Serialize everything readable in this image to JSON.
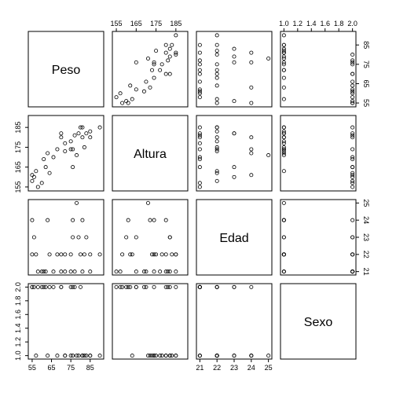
{
  "chart_data": {
    "type": "scatter",
    "kind": "pairs-matrix",
    "variables": [
      "Peso",
      "Altura",
      "Edad",
      "Sexo"
    ],
    "axes": {
      "Peso": {
        "range": [
          53,
          92
        ],
        "ticks": [
          55,
          65,
          75,
          85
        ]
      },
      "Altura": {
        "range": [
          153,
          191
        ],
        "ticks": [
          155,
          165,
          175,
          185
        ]
      },
      "Edad": {
        "range": [
          20.8,
          25.2
        ],
        "ticks": [
          21,
          22,
          23,
          24,
          25
        ]
      },
      "Sexo": {
        "range": [
          0.95,
          2.05
        ],
        "ticks": [
          1.0,
          1.2,
          1.4,
          1.6,
          1.8,
          2.0
        ]
      }
    },
    "tick_label_side": {
      "Peso": "bottom",
      "Altura": "top",
      "Edad": "bottom",
      "Sexo": "top"
    },
    "observations": {
      "Peso": [
        55,
        55,
        56,
        57,
        58,
        60,
        61,
        62,
        63,
        64,
        66,
        68,
        70,
        70,
        72,
        72,
        75,
        75,
        76,
        76,
        77,
        78,
        79,
        80,
        81,
        81,
        82,
        83,
        85,
        85,
        90
      ],
      "Altura": [
        161,
        158,
        160,
        163,
        155,
        157,
        169,
        165,
        172,
        162,
        170,
        174,
        182,
        180,
        173,
        177,
        178,
        174,
        174,
        165,
        181,
        171,
        182,
        185,
        180,
        185,
        175,
        182,
        180,
        183,
        185
      ],
      "Edad": [
        24,
        22,
        23,
        22,
        21,
        21,
        21,
        21,
        24,
        22,
        21,
        22,
        21,
        22,
        22,
        21,
        22,
        21,
        24,
        23,
        21,
        25,
        23,
        22,
        24,
        21,
        22,
        23,
        21,
        22,
        22
      ],
      "Sexo": [
        2,
        2,
        2,
        1,
        2,
        2,
        2,
        2,
        1,
        2,
        2,
        1,
        2,
        2,
        1,
        1,
        1,
        2,
        1,
        2,
        2,
        1,
        1,
        2,
        1,
        1,
        1,
        1,
        1,
        1,
        1
      ]
    },
    "grid": false,
    "legend": "none"
  }
}
